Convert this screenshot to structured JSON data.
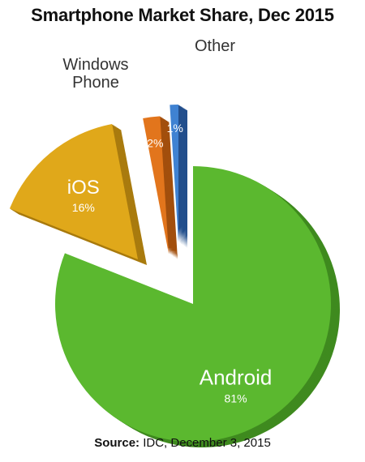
{
  "chart_data": {
    "type": "pie",
    "title": "Smartphone Market Share, Dec 2015",
    "slices": [
      {
        "label": "Android",
        "value": 81,
        "value_label": "81%",
        "color": "#5bb82f",
        "side_color": "#3f8a1f"
      },
      {
        "label": "iOS",
        "value": 16,
        "value_label": "16%",
        "color": "#e0a81a",
        "side_color": "#a97b0e"
      },
      {
        "label": "Windows Phone",
        "value": 2,
        "value_label": "2%",
        "color": "#e2751c",
        "side_color": "#a24f0d"
      },
      {
        "label": "Other",
        "value": 1,
        "value_label": "1%",
        "color": "#3f82d2",
        "side_color": "#234f8c"
      }
    ],
    "legend": "none",
    "exploded": true,
    "three_d": true
  },
  "source": {
    "label": "Source:",
    "text": "IDC, December 3, 2015"
  }
}
